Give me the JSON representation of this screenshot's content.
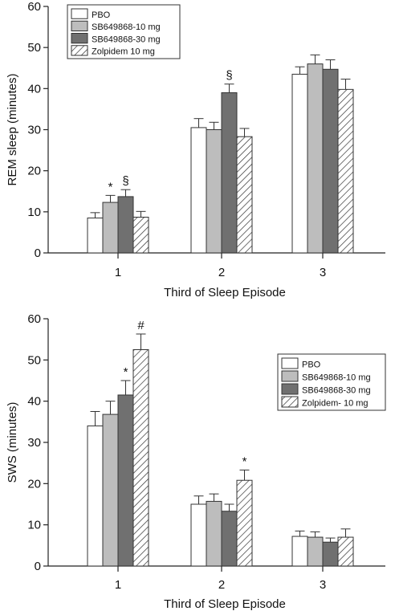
{
  "chart_data": [
    {
      "type": "bar",
      "xlabel": "Third of Sleep Episode",
      "ylabel": "REM sleep (minutes)",
      "ylim": [
        0,
        60
      ],
      "yticks": [
        0,
        10,
        20,
        30,
        40,
        50,
        60
      ],
      "categories": [
        "1",
        "2",
        "3"
      ],
      "legend_position": "top-left",
      "series": [
        {
          "name": "PBO",
          "values": [
            8.5,
            30.5,
            43.5
          ],
          "errors": [
            1.3,
            2.2,
            1.8
          ],
          "annotations": [
            "",
            "",
            ""
          ]
        },
        {
          "name": "SB649868-10 mg",
          "values": [
            12.3,
            30.0,
            46.0
          ],
          "errors": [
            1.7,
            1.8,
            2.2
          ],
          "annotations": [
            "*",
            "",
            ""
          ]
        },
        {
          "name": "SB649868-30 mg",
          "values": [
            13.7,
            39.0,
            44.7
          ],
          "errors": [
            1.7,
            2.1,
            2.3
          ],
          "annotations": [
            "§",
            "§",
            ""
          ]
        },
        {
          "name": "Zolpidem 10 mg",
          "values": [
            8.7,
            28.3,
            39.8
          ],
          "errors": [
            1.4,
            2.0,
            2.5
          ],
          "annotations": [
            "",
            "",
            ""
          ]
        }
      ]
    },
    {
      "type": "bar",
      "xlabel": "Third of Sleep Episode",
      "ylabel": "SWS (minutes)",
      "ylim": [
        0,
        60
      ],
      "yticks": [
        0,
        10,
        20,
        30,
        40,
        50,
        60
      ],
      "categories": [
        "1",
        "2",
        "3"
      ],
      "legend_position": "top-right",
      "series": [
        {
          "name": "PBO",
          "values": [
            34.0,
            15.0,
            7.2
          ],
          "errors": [
            3.5,
            2.0,
            1.3
          ],
          "annotations": [
            "",
            "",
            ""
          ]
        },
        {
          "name": "SB649868-10 mg",
          "values": [
            36.8,
            15.7,
            7.0
          ],
          "errors": [
            3.2,
            1.8,
            1.3
          ],
          "annotations": [
            "",
            "",
            ""
          ]
        },
        {
          "name": "SB649868-30 mg",
          "values": [
            41.5,
            13.3,
            5.8
          ],
          "errors": [
            3.5,
            1.7,
            1.0
          ],
          "annotations": [
            "*",
            "",
            ""
          ]
        },
        {
          "name": "Zolpidem- 10 mg",
          "values": [
            52.5,
            20.8,
            7.0
          ],
          "errors": [
            3.8,
            2.5,
            2.0
          ],
          "annotations": [
            "#",
            "*",
            ""
          ]
        }
      ]
    }
  ],
  "colors": {
    "series_fills": [
      "#ffffff",
      "#bdbdbd",
      "#707070",
      "hatch"
    ],
    "outline": "#333333"
  }
}
